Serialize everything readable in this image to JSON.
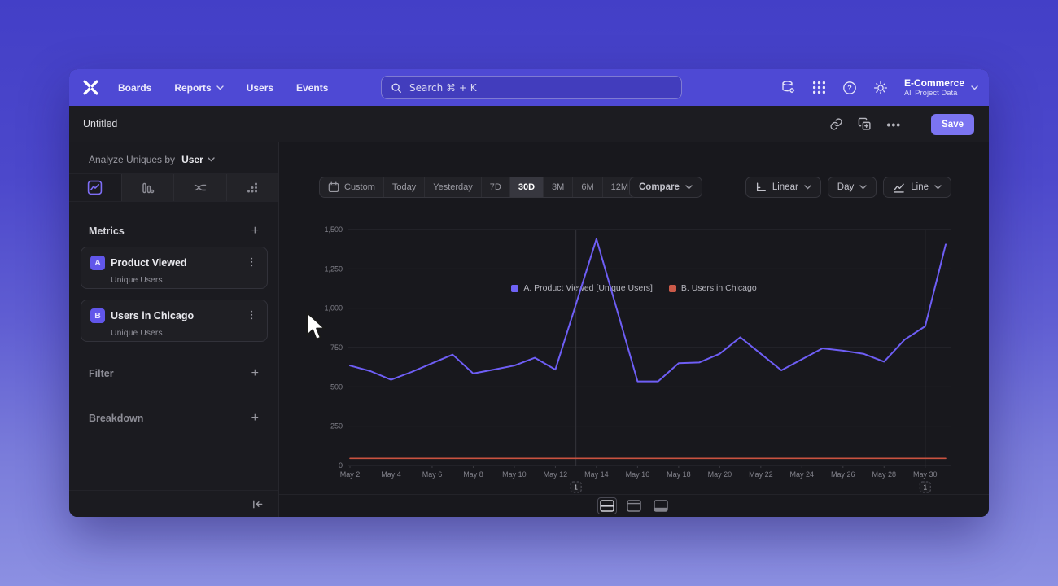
{
  "nav": {
    "items": [
      "Boards",
      "Reports",
      "Users",
      "Events"
    ],
    "search": {
      "placeholder": "Search  ⌘ + K"
    },
    "project": {
      "name": "E-Commerce",
      "subtitle": "All Project Data"
    }
  },
  "title_bar": {
    "title": "Untitled",
    "save_label": "Save",
    "more_label": "•••"
  },
  "sidebar": {
    "analyze_label": "Analyze Uniques by",
    "analyze_value": "User",
    "metrics_header": "Metrics",
    "metrics": [
      {
        "badge": "A",
        "name": "Product Viewed",
        "subtitle": "Unique Users",
        "menu": "⋮"
      },
      {
        "badge": "B",
        "name": "Users in Chicago",
        "subtitle": "Unique Users",
        "menu": "⋮"
      }
    ],
    "filter_label": "Filter",
    "breakdown_label": "Breakdown"
  },
  "controls": {
    "date_ranges": [
      "Custom",
      "Today",
      "Yesterday",
      "7D",
      "30D",
      "3M",
      "6M",
      "12M"
    ],
    "selected_range": "30D",
    "compare_label": "Compare",
    "scale_label": "Linear",
    "interval_label": "Day",
    "chart_type_label": "Line"
  },
  "colors": {
    "accent": "#6156ea",
    "nav_bg": "#4e49d4",
    "save_bg": "#7b74f1",
    "series_a": "#6e5ef5",
    "series_b": "#c95240"
  },
  "chart_data": {
    "type": "line",
    "title": "",
    "xlabel": "",
    "ylabel": "",
    "ylim": [
      0,
      1500
    ],
    "grid": true,
    "legend_position": "top-center",
    "categories": [
      "May 2",
      "May 3",
      "May 4",
      "May 5",
      "May 6",
      "May 7",
      "May 8",
      "May 9",
      "May 10",
      "May 11",
      "May 12",
      "May 13",
      "May 14",
      "May 15",
      "May 16",
      "May 17",
      "May 18",
      "May 19",
      "May 20",
      "May 21",
      "May 22",
      "May 23",
      "May 24",
      "May 25",
      "May 26",
      "May 27",
      "May 28",
      "May 29",
      "May 30",
      "May 31"
    ],
    "x_tick_every": 2,
    "yticks": [
      {
        "value": 0,
        "label": "0"
      },
      {
        "value": 250,
        "label": "250"
      },
      {
        "value": 500,
        "label": "500"
      },
      {
        "value": 750,
        "label": "750"
      },
      {
        "value": 1000,
        "label": "1,000"
      },
      {
        "value": 1250,
        "label": "1,250"
      },
      {
        "value": 1500,
        "label": "1,500"
      }
    ],
    "series": [
      {
        "name": "A. Product Viewed [Unique Users]",
        "color": "#6e5ef5",
        "width": 2,
        "values": [
          635,
          600,
          545,
          595,
          650,
          705,
          585,
          610,
          635,
          685,
          610,
          1025,
          1440,
          990,
          535,
          535,
          650,
          655,
          710,
          815,
          710,
          605,
          675,
          745,
          730,
          710,
          660,
          800,
          885,
          1405
        ]
      },
      {
        "name": "B. Users in Chicago",
        "color": "#c95240",
        "width": 1.6,
        "values": [
          45,
          45,
          45,
          45,
          45,
          45,
          45,
          45,
          45,
          45,
          45,
          45,
          45,
          45,
          45,
          45,
          45,
          45,
          45,
          45,
          45,
          45,
          45,
          45,
          45,
          45,
          45,
          45,
          45,
          45
        ]
      }
    ],
    "annotations": [
      {
        "label": "1",
        "day_index": 11
      },
      {
        "label": "1",
        "day_index": 28
      }
    ]
  }
}
